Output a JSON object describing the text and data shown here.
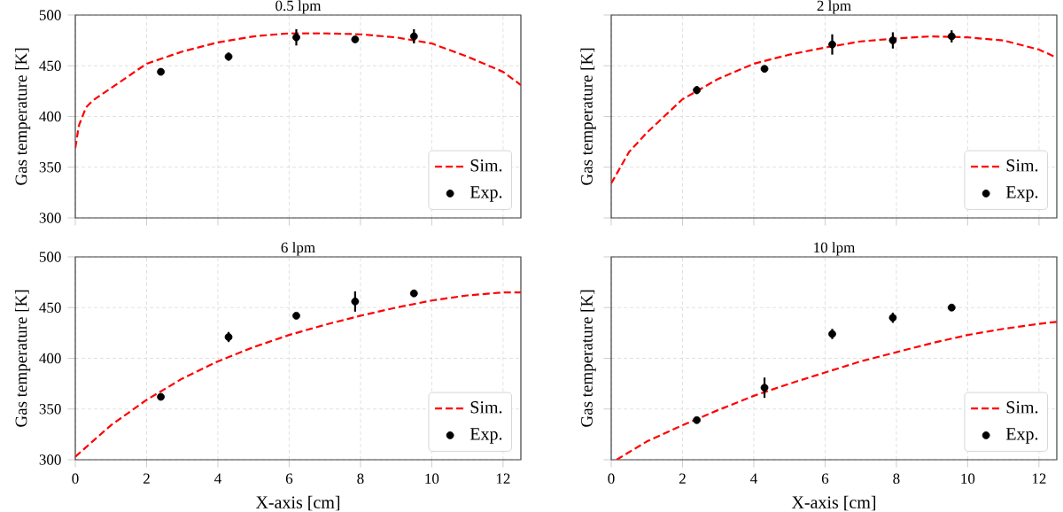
{
  "chart_data": [
    {
      "type": "line",
      "title": "0.5 lpm",
      "ylabel": "Gas temperature [K]",
      "xlim": [
        0,
        12.5
      ],
      "xticks": [
        0,
        2,
        4,
        6,
        8,
        10,
        12
      ],
      "ylim": [
        300,
        500
      ],
      "yticks": [
        300,
        350,
        400,
        450,
        500
      ],
      "grid": true,
      "legend": "bottom right",
      "tick_labels": "y",
      "series": [
        {
          "name": "Sim.",
          "color": "#ff0000",
          "line_style": "dashed",
          "marker": "none",
          "x": [
            0,
            0.1,
            0.3,
            0.5,
            1,
            2,
            3,
            4,
            5,
            6,
            7,
            8,
            9,
            10,
            11,
            12,
            12.5
          ],
          "values": [
            369,
            391,
            409,
            416,
            428,
            452,
            464,
            473,
            479,
            482,
            482,
            481,
            478,
            472,
            459,
            444,
            431
          ]
        },
        {
          "name": "Exp.",
          "type": "scatter",
          "color": "#000000",
          "marker": "circle",
          "x": [
            2.4,
            4.3,
            6.2,
            7.85,
            9.5
          ],
          "values": [
            444,
            459,
            478,
            476,
            479
          ],
          "errors": [
            2,
            4,
            8,
            3,
            7
          ]
        }
      ]
    },
    {
      "type": "line",
      "title": "2 lpm",
      "ylabel": "Gas temperature [K]",
      "xlim": [
        0,
        12.5
      ],
      "xticks": [
        0,
        2,
        4,
        6,
        8,
        10,
        12
      ],
      "ylim": [
        300,
        500
      ],
      "yticks": [
        300,
        350,
        400,
        450,
        500
      ],
      "grid": true,
      "legend": "bottom right",
      "tick_labels": false,
      "series": [
        {
          "name": "Sim.",
          "color": "#ff0000",
          "line_style": "dashed",
          "marker": "none",
          "x": [
            0,
            0.5,
            1,
            2,
            3,
            4,
            5,
            6,
            7,
            8,
            9,
            10,
            11,
            12,
            12.5
          ],
          "values": [
            334,
            365,
            384,
            417,
            437,
            452,
            461,
            468,
            474,
            477,
            479,
            478,
            475,
            466,
            458
          ]
        },
        {
          "name": "Exp.",
          "type": "scatter",
          "color": "#000000",
          "marker": "circle",
          "x": [
            2.4,
            4.3,
            6.2,
            7.9,
            9.55
          ],
          "values": [
            426,
            447,
            471,
            475,
            479
          ],
          "errors": [
            4,
            2,
            10,
            8,
            6
          ]
        }
      ]
    },
    {
      "type": "line",
      "title": "6 lpm",
      "xlabel": "X-axis [cm]",
      "ylabel": "Gas temperature [K]",
      "xlim": [
        0,
        12.5
      ],
      "xticks": [
        0,
        2,
        4,
        6,
        8,
        10,
        12
      ],
      "ylim": [
        300,
        500
      ],
      "yticks": [
        300,
        350,
        400,
        450,
        500
      ],
      "grid": true,
      "legend": "bottom right",
      "series": [
        {
          "name": "Sim.",
          "color": "#ff0000",
          "line_style": "dashed",
          "marker": "none",
          "x": [
            0,
            1,
            2,
            3,
            4,
            5,
            6,
            7,
            8,
            9,
            10,
            11,
            12,
            12.5
          ],
          "values": [
            303,
            334,
            359,
            380,
            397,
            411,
            423,
            433,
            442,
            450,
            457,
            462,
            465,
            465
          ]
        },
        {
          "name": "Exp.",
          "type": "scatter",
          "color": "#000000",
          "marker": "circle",
          "x": [
            2.4,
            4.3,
            6.2,
            7.85,
            9.5
          ],
          "values": [
            362,
            421,
            442,
            456,
            464
          ],
          "errors": [
            2,
            5,
            3,
            10,
            2
          ]
        }
      ]
    },
    {
      "type": "line",
      "title": "10 lpm",
      "xlabel": "X-axis [cm]",
      "ylabel": "Gas temperature [K]",
      "xlim": [
        0,
        12.5
      ],
      "xticks": [
        0,
        2,
        4,
        6,
        8,
        10,
        12
      ],
      "ylim": [
        300,
        500
      ],
      "yticks": [
        300,
        350,
        400,
        450,
        500
      ],
      "grid": true,
      "legend": "bottom right",
      "tick_labels": "x",
      "series": [
        {
          "name": "Sim.",
          "color": "#ff0000",
          "line_style": "dashed",
          "marker": "none",
          "x": [
            0.15,
            1,
            2,
            3,
            4,
            5,
            6,
            7,
            8,
            9,
            10,
            11,
            12,
            12.5
          ],
          "values": [
            300,
            318,
            334,
            349,
            363,
            375,
            386,
            397,
            406,
            415,
            423,
            429,
            434,
            436
          ]
        },
        {
          "name": "Exp.",
          "type": "scatter",
          "color": "#000000",
          "marker": "circle",
          "x": [
            2.4,
            4.3,
            6.2,
            7.9,
            9.55
          ],
          "values": [
            339,
            371,
            424,
            440,
            450
          ],
          "errors": [
            2,
            10,
            5,
            5,
            2
          ]
        }
      ]
    }
  ]
}
